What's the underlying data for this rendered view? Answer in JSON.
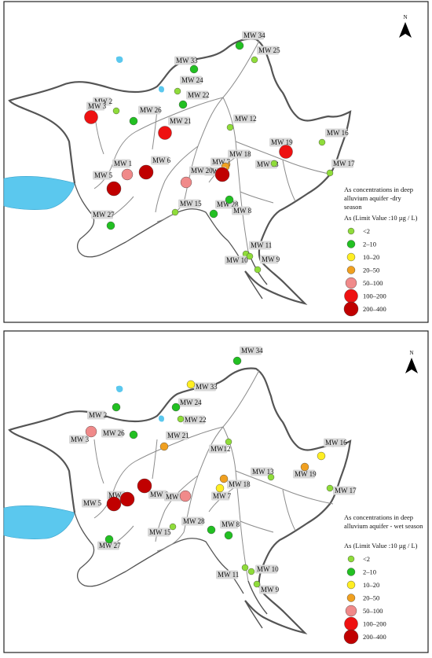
{
  "north_label": "N",
  "legend": {
    "limit_label": "As (Limit Value :10 µg / L)",
    "classes": [
      {
        "label": "<2",
        "color": "#8fdc3a"
      },
      {
        "label": "2–10",
        "color": "#22c022"
      },
      {
        "label": "10–20",
        "color": "#ffee22"
      },
      {
        "label": "20–50",
        "color": "#f0a020"
      },
      {
        "label": "50–100",
        "color": "#f08a8a"
      },
      {
        "label": "100–200",
        "color": "#ee1111"
      },
      {
        "label": "200–400",
        "color": "#c00000"
      }
    ]
  },
  "panels": [
    {
      "title_lines": [
        "As concentrations in deep",
        "alluvium aquifer -dry",
        "season"
      ],
      "wells": [
        {
          "id": "MW 34",
          "cls": 1
        },
        {
          "id": "MW 25",
          "cls": 0
        },
        {
          "id": "MW 33",
          "cls": 1
        },
        {
          "id": "MW 24",
          "cls": 0
        },
        {
          "id": "MW 22",
          "cls": 1
        },
        {
          "id": "MW 2",
          "cls": 0
        },
        {
          "id": "MW 3",
          "cls": 5
        },
        {
          "id": "MW 26",
          "cls": 1
        },
        {
          "id": "MW 21",
          "cls": 5
        },
        {
          "id": "MW 12",
          "cls": 0
        },
        {
          "id": "MW 19",
          "cls": 5
        },
        {
          "id": "MW 16",
          "cls": 0
        },
        {
          "id": "MW 18",
          "cls": 3
        },
        {
          "id": "MW 7",
          "cls": 3
        },
        {
          "id": "MW 20",
          "cls": 6
        },
        {
          "id": "MW 13",
          "cls": 0
        },
        {
          "id": "MW 17",
          "cls": 0
        },
        {
          "id": "MW 1",
          "cls": 4
        },
        {
          "id": "MW 6",
          "cls": 6
        },
        {
          "id": "MW 5",
          "cls": 6
        },
        {
          "id": "MW 20",
          "cls": 4
        },
        {
          "id": "MW 15",
          "cls": 0
        },
        {
          "id": "MW 28",
          "cls": 1
        },
        {
          "id": "MW 8",
          "cls": 1
        },
        {
          "id": "MW 27",
          "cls": 1
        },
        {
          "id": "MW 11",
          "cls": 0
        },
        {
          "id": "MW 10",
          "cls": 0
        },
        {
          "id": "MW 9",
          "cls": 0
        }
      ]
    },
    {
      "title_lines": [
        "As concentrations in deep",
        "alluvium aquifer - wet season"
      ],
      "wells": [
        {
          "id": "MW 34",
          "cls": 1
        },
        {
          "id": "MW 33",
          "cls": 2
        },
        {
          "id": "MW 24",
          "cls": 1
        },
        {
          "id": "MW 22",
          "cls": 0
        },
        {
          "id": "MW 2",
          "cls": 1
        },
        {
          "id": "MW 3",
          "cls": 4
        },
        {
          "id": "MW 26",
          "cls": 1
        },
        {
          "id": "MW 21",
          "cls": 3
        },
        {
          "id": "MW12",
          "cls": 0
        },
        {
          "id": "MW 16",
          "cls": 2
        },
        {
          "id": "MW 18",
          "cls": 3
        },
        {
          "id": "MW 13",
          "cls": 0
        },
        {
          "id": "MW 19",
          "cls": 3
        },
        {
          "id": "MW 17",
          "cls": 0
        },
        {
          "id": "MW 7",
          "cls": 2
        },
        {
          "id": "MW 1",
          "cls": 6
        },
        {
          "id": "MW 6",
          "cls": 6
        },
        {
          "id": "MW 5",
          "cls": 6
        },
        {
          "id": "MW 20",
          "cls": 4
        },
        {
          "id": "MW 15",
          "cls": 0
        },
        {
          "id": "MW 28",
          "cls": 1
        },
        {
          "id": "MW 8",
          "cls": 1
        },
        {
          "id": "MW 27",
          "cls": 1
        },
        {
          "id": "MW 11",
          "cls": 0
        },
        {
          "id": "MW 10",
          "cls": 0
        },
        {
          "id": "MW 9",
          "cls": 0
        }
      ]
    }
  ]
}
